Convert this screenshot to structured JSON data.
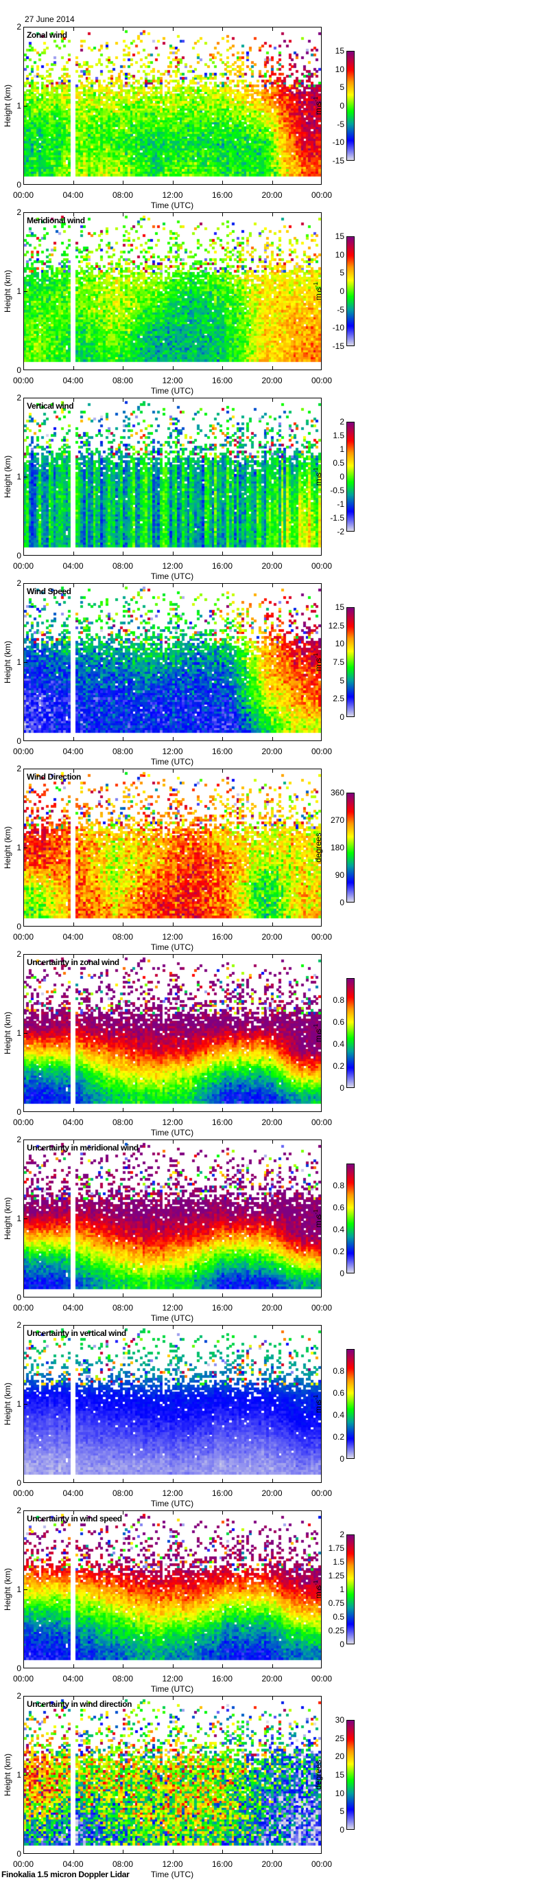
{
  "header": {
    "date": "27 June 2014"
  },
  "footer": {
    "instrument": "Finokalia 1.5 micron Doppler Lidar"
  },
  "axes": {
    "xlabel": "Time (UTC)",
    "ylabel": "Height (km)",
    "x_range_h": [
      0,
      24
    ],
    "y_range_km": [
      0,
      2
    ],
    "x_ticks": [
      {
        "v": 0,
        "label": "00:00"
      },
      {
        "v": 4,
        "label": "04:00"
      },
      {
        "v": 8,
        "label": "08:00"
      },
      {
        "v": 12,
        "label": "12:00"
      },
      {
        "v": 16,
        "label": "16:00"
      },
      {
        "v": 20,
        "label": "20:00"
      },
      {
        "v": 24,
        "label": "00:00"
      }
    ],
    "y_ticks": [
      {
        "v": 0,
        "label": "0"
      },
      {
        "v": 1,
        "label": "1"
      },
      {
        "v": 2,
        "label": "2"
      }
    ],
    "data_gap_h": [
      3.75,
      4.25
    ],
    "lowest_gate_km": 0.1,
    "highest_gate_km": 1.96,
    "time_resolution_h": 0.2,
    "gate_spacing_km": 0.03,
    "coverage_by_height": [
      {
        "h": 0.1,
        "p": 1.0
      },
      {
        "h": 0.9,
        "p": 0.98
      },
      {
        "h": 1.1,
        "p": 0.85
      },
      {
        "h": 1.3,
        "p": 0.45
      },
      {
        "h": 1.6,
        "p": 0.18
      },
      {
        "h": 1.96,
        "p": 0.08
      }
    ]
  },
  "colormap": [
    "#dcdce8",
    "#0000ff",
    "#00a0a0",
    "#00ff00",
    "#ffff00",
    "#ff9900",
    "#ff0000",
    "#800080"
  ],
  "colormap_positions": [
    0,
    0.18,
    0.33,
    0.45,
    0.6,
    0.72,
    0.83,
    1
  ],
  "chart_data": [
    {
      "type": "heatmap",
      "title": "Zonal wind",
      "unit": "m s",
      "unit_sup": "-1",
      "min": -15,
      "max": 15,
      "ticks": [
        {
          "v": -15,
          "label": "-15"
        },
        {
          "v": -10,
          "label": "-10"
        },
        {
          "v": -5,
          "label": "-5"
        },
        {
          "v": 0,
          "label": "0"
        },
        {
          "v": 5,
          "label": "5"
        },
        {
          "v": 10,
          "label": "10"
        },
        {
          "v": 15,
          "label": "15"
        }
      ],
      "noise": 3.0,
      "column_noise": 0.5,
      "times_h": [
        1.5,
        4.5,
        7.5,
        10.5,
        13.5,
        16.5,
        19.5,
        22.5
      ],
      "heights_km": [
        0.2,
        0.5,
        0.8,
        1.1,
        1.4,
        1.8
      ],
      "values": [
        [
          -2,
          1,
          2,
          -2,
          0,
          -2,
          -2,
          8
        ],
        [
          -3,
          0,
          -1,
          -3,
          -2,
          -3,
          -2,
          11
        ],
        [
          -1,
          0,
          0,
          0,
          -1,
          -1,
          1,
          12
        ],
        [
          1,
          2,
          2,
          2,
          1,
          2,
          6,
          12
        ],
        [
          2,
          3,
          3,
          3,
          3,
          3,
          8,
          14
        ],
        [
          0,
          2,
          3,
          3,
          3,
          5,
          10,
          15
        ]
      ]
    },
    {
      "type": "heatmap",
      "title": "Meridional wind",
      "unit": "m s",
      "unit_sup": "-1",
      "min": -15,
      "max": 15,
      "ticks": [
        {
          "v": -15,
          "label": "-15"
        },
        {
          "v": -10,
          "label": "-10"
        },
        {
          "v": -5,
          "label": "-5"
        },
        {
          "v": 0,
          "label": "0"
        },
        {
          "v": 5,
          "label": "5"
        },
        {
          "v": 10,
          "label": "10"
        },
        {
          "v": 15,
          "label": "15"
        }
      ],
      "noise": 2.8,
      "column_noise": 0.5,
      "times_h": [
        1.5,
        4.5,
        7.5,
        10.5,
        13.5,
        16.5,
        19.5,
        22.5
      ],
      "heights_km": [
        0.2,
        0.5,
        0.8,
        1.1,
        1.4,
        1.8
      ],
      "values": [
        [
          0,
          -3,
          -1,
          -5,
          -4,
          -3,
          4,
          7
        ],
        [
          0,
          -2,
          1,
          -4,
          -4,
          -3,
          4,
          6
        ],
        [
          -1,
          0,
          2,
          -1,
          -4,
          -2,
          4,
          5
        ],
        [
          -2,
          0,
          2,
          1,
          -2,
          0,
          4,
          3
        ],
        [
          -2,
          0,
          1,
          1,
          0,
          1,
          4,
          3
        ],
        [
          -2,
          0,
          0,
          1,
          1,
          1,
          2,
          2
        ]
      ]
    },
    {
      "type": "heatmap",
      "title": "Vertical wind",
      "unit": "m s",
      "unit_sup": "-1",
      "min": -2,
      "max": 2,
      "ticks": [
        {
          "v": -2,
          "label": "-2"
        },
        {
          "v": -1.5,
          "label": "-1.5"
        },
        {
          "v": -1,
          "label": "-1"
        },
        {
          "v": -0.5,
          "label": "-0.5"
        },
        {
          "v": 0,
          "label": "0"
        },
        {
          "v": 0.5,
          "label": "0.5"
        },
        {
          "v": 1,
          "label": "1"
        },
        {
          "v": 1.5,
          "label": "1.5"
        },
        {
          "v": 2,
          "label": "2"
        }
      ],
      "noise": 0.3,
      "column_noise": 0.45,
      "times_h": [
        1.5,
        4.5,
        7.5,
        10.5,
        13.5,
        16.5,
        19.5,
        22.5
      ],
      "heights_km": [
        0.2,
        0.5,
        0.8,
        1.1,
        1.4,
        1.8
      ],
      "values": [
        [
          -0.6,
          -0.8,
          -0.5,
          -0.5,
          -0.6,
          -0.6,
          -0.3,
          0.4
        ],
        [
          -0.6,
          -0.7,
          -0.5,
          -0.5,
          -0.5,
          -0.5,
          -0.3,
          0.3
        ],
        [
          -0.6,
          -0.6,
          -0.5,
          -0.5,
          -0.5,
          -0.5,
          -0.4,
          0.1
        ],
        [
          -0.7,
          -0.7,
          -0.6,
          -0.5,
          -0.5,
          -0.5,
          -0.5,
          -0.2
        ],
        [
          -0.5,
          -0.6,
          -0.5,
          -0.5,
          -0.5,
          -0.5,
          -0.5,
          -0.4
        ],
        [
          -0.4,
          -0.5,
          -0.5,
          -0.5,
          -0.5,
          -0.5,
          -0.5,
          -0.5
        ]
      ]
    },
    {
      "type": "heatmap",
      "title": "Wind Speed",
      "unit": "m s",
      "unit_sup": "-1",
      "min": 0,
      "max": 15,
      "ticks": [
        {
          "v": 0,
          "label": "0"
        },
        {
          "v": 2.5,
          "label": "2.5"
        },
        {
          "v": 5,
          "label": "5"
        },
        {
          "v": 7.5,
          "label": "7.5"
        },
        {
          "v": 10,
          "label": "10"
        },
        {
          "v": 12.5,
          "label": "12.5"
        },
        {
          "v": 15,
          "label": "15"
        }
      ],
      "noise": 1.6,
      "column_noise": 0.4,
      "times_h": [
        1.5,
        4.5,
        7.5,
        10.5,
        13.5,
        16.5,
        19.5,
        22.5
      ],
      "heights_km": [
        0.2,
        0.5,
        0.8,
        1.1,
        1.4,
        1.8
      ],
      "values": [
        [
          2,
          3,
          3,
          3,
          3,
          2,
          6,
          9
        ],
        [
          2,
          3,
          3,
          3,
          3,
          3,
          8,
          11
        ],
        [
          3,
          4,
          4,
          4,
          4,
          4,
          9,
          12
        ],
        [
          4,
          5,
          5,
          6,
          5,
          5,
          10,
          13
        ],
        [
          5,
          6,
          6,
          6,
          6,
          7,
          11,
          14
        ],
        [
          5,
          6,
          7,
          7,
          8,
          8,
          12,
          14
        ]
      ]
    },
    {
      "type": "heatmap",
      "title": "Wind Direction",
      "unit": "degrees",
      "unit_sup": "",
      "min": 0,
      "max": 360,
      "ticks": [
        {
          "v": 0,
          "label": "0"
        },
        {
          "v": 90,
          "label": "90"
        },
        {
          "v": 180,
          "label": "180"
        },
        {
          "v": 270,
          "label": "270"
        },
        {
          "v": 360,
          "label": "360"
        }
      ],
      "noise": 45,
      "column_noise": 10,
      "times_h": [
        1.5,
        4.5,
        7.5,
        10.5,
        13.5,
        16.5,
        19.5,
        22.5
      ],
      "heights_km": [
        0.2,
        0.5,
        0.8,
        1.1,
        1.4,
        1.8
      ],
      "values": [
        [
          180,
          280,
          240,
          300,
          300,
          270,
          150,
          230
        ],
        [
          200,
          280,
          200,
          280,
          300,
          260,
          150,
          230
        ],
        [
          280,
          260,
          200,
          250,
          290,
          270,
          200,
          220
        ],
        [
          300,
          260,
          220,
          250,
          280,
          230,
          220,
          220
        ],
        [
          290,
          260,
          240,
          260,
          270,
          240,
          230,
          220
        ],
        [
          280,
          270,
          260,
          270,
          260,
          250,
          240,
          230
        ]
      ]
    },
    {
      "type": "heatmap",
      "title": "Uncertainty in zonal wind",
      "unit": "m s",
      "unit_sup": "-1",
      "min": 0,
      "max": 1,
      "ticks": [
        {
          "v": 0,
          "label": "0"
        },
        {
          "v": 0.2,
          "label": "0.2"
        },
        {
          "v": 0.4,
          "label": "0.4"
        },
        {
          "v": 0.6,
          "label": "0.6"
        },
        {
          "v": 0.8,
          "label": "0.8"
        }
      ],
      "noise": 0.07,
      "column_noise": 0.03,
      "times_h": [
        1.5,
        4.5,
        7.5,
        10.5,
        13.5,
        16.5,
        19.5,
        22.5
      ],
      "heights_km": [
        0.2,
        0.5,
        0.8,
        1.1,
        1.4,
        1.8
      ],
      "values": [
        [
          0.2,
          0.25,
          0.4,
          0.45,
          0.4,
          0.2,
          0.2,
          0.35
        ],
        [
          0.35,
          0.4,
          0.6,
          0.65,
          0.55,
          0.4,
          0.4,
          0.7
        ],
        [
          0.7,
          0.7,
          0.8,
          0.9,
          0.85,
          0.7,
          0.7,
          1.0
        ],
        [
          1.0,
          0.95,
          1.0,
          1.0,
          1.0,
          1.0,
          1.0,
          1.0
        ],
        [
          1,
          1,
          1,
          1,
          1,
          1,
          1,
          1
        ],
        [
          1,
          1,
          1,
          1,
          1,
          1,
          1,
          1
        ]
      ]
    },
    {
      "type": "heatmap",
      "title": "Uncertainty in meridional wind",
      "unit": "m s",
      "unit_sup": "-1",
      "min": 0,
      "max": 1,
      "ticks": [
        {
          "v": 0,
          "label": "0"
        },
        {
          "v": 0.2,
          "label": "0.2"
        },
        {
          "v": 0.4,
          "label": "0.4"
        },
        {
          "v": 0.6,
          "label": "0.6"
        },
        {
          "v": 0.8,
          "label": "0.8"
        }
      ],
      "noise": 0.07,
      "column_noise": 0.03,
      "times_h": [
        1.5,
        4.5,
        7.5,
        10.5,
        13.5,
        16.5,
        19.5,
        22.5
      ],
      "heights_km": [
        0.2,
        0.5,
        0.8,
        1.1,
        1.4,
        1.8
      ],
      "values": [
        [
          0.2,
          0.25,
          0.4,
          0.45,
          0.4,
          0.2,
          0.2,
          0.35
        ],
        [
          0.38,
          0.45,
          0.6,
          0.7,
          0.6,
          0.45,
          0.45,
          0.7
        ],
        [
          0.72,
          0.72,
          0.85,
          0.9,
          0.85,
          0.75,
          0.75,
          1.0
        ],
        [
          1.0,
          0.95,
          1.0,
          1.0,
          1.0,
          1.0,
          1.0,
          1.0
        ],
        [
          1,
          1,
          1,
          1,
          1,
          1,
          1,
          1
        ],
        [
          1,
          1,
          1,
          1,
          1,
          1,
          1,
          1
        ]
      ]
    },
    {
      "type": "heatmap",
      "title": "Uncertainty in vertical wind",
      "unit": "m s",
      "unit_sup": "-1",
      "min": 0,
      "max": 1,
      "ticks": [
        {
          "v": 0,
          "label": "0"
        },
        {
          "v": 0.2,
          "label": "0.2"
        },
        {
          "v": 0.4,
          "label": "0.4"
        },
        {
          "v": 0.6,
          "label": "0.6"
        },
        {
          "v": 0.8,
          "label": "0.8"
        }
      ],
      "noise": 0.025,
      "column_noise": 0.01,
      "times_h": [
        1.5,
        4.5,
        7.5,
        10.5,
        13.5,
        16.5,
        19.5,
        22.5
      ],
      "heights_km": [
        0.2,
        0.5,
        0.8,
        1.1,
        1.4,
        1.8
      ],
      "values": [
        [
          0.04,
          0.05,
          0.05,
          0.06,
          0.06,
          0.05,
          0.05,
          0.07
        ],
        [
          0.08,
          0.09,
          0.1,
          0.11,
          0.11,
          0.09,
          0.09,
          0.13
        ],
        [
          0.12,
          0.13,
          0.14,
          0.16,
          0.16,
          0.14,
          0.14,
          0.18
        ],
        [
          0.17,
          0.18,
          0.19,
          0.2,
          0.2,
          0.19,
          0.19,
          0.22
        ],
        [
          0.3,
          0.3,
          0.3,
          0.32,
          0.32,
          0.3,
          0.3,
          0.32
        ],
        [
          0.4,
          0.4,
          0.4,
          0.4,
          0.4,
          0.4,
          0.4,
          0.4
        ]
      ]
    },
    {
      "type": "heatmap",
      "title": "Uncertainty in wind speed",
      "unit": "m s",
      "unit_sup": "-1",
      "min": 0,
      "max": 2,
      "ticks": [
        {
          "v": 0,
          "label": "0"
        },
        {
          "v": 0.25,
          "label": "0.25"
        },
        {
          "v": 0.5,
          "label": "0.5"
        },
        {
          "v": 0.75,
          "label": "0.75"
        },
        {
          "v": 1,
          "label": "1"
        },
        {
          "v": 1.25,
          "label": "1.25"
        },
        {
          "v": 1.5,
          "label": "1.5"
        },
        {
          "v": 1.75,
          "label": "1.75"
        },
        {
          "v": 2,
          "label": "2"
        }
      ],
      "noise": 0.15,
      "column_noise": 0.05,
      "times_h": [
        1.5,
        4.5,
        7.5,
        10.5,
        13.5,
        16.5,
        19.5,
        22.5
      ],
      "heights_km": [
        0.2,
        0.5,
        0.8,
        1.1,
        1.4,
        1.8
      ],
      "values": [
        [
          0.35,
          0.45,
          0.55,
          0.7,
          0.6,
          0.4,
          0.4,
          0.6
        ],
        [
          0.55,
          0.65,
          0.85,
          1.0,
          0.95,
          0.65,
          0.65,
          1.0
        ],
        [
          0.95,
          1.0,
          1.2,
          1.4,
          1.4,
          1.1,
          1.1,
          1.5
        ],
        [
          1.4,
          1.45,
          1.6,
          1.75,
          1.75,
          1.6,
          1.6,
          1.9
        ],
        [
          1.85,
          1.9,
          1.95,
          2.0,
          2.0,
          1.95,
          1.95,
          2.0
        ],
        [
          2,
          2,
          2,
          2,
          2,
          2,
          2,
          2
        ]
      ]
    },
    {
      "type": "heatmap",
      "title": "Uncertainty in wind direction",
      "unit": "degrees",
      "unit_sup": "",
      "min": 0,
      "max": 30,
      "ticks": [
        {
          "v": 0,
          "label": "0"
        },
        {
          "v": 5,
          "label": "5"
        },
        {
          "v": 10,
          "label": "10"
        },
        {
          "v": 15,
          "label": "15"
        },
        {
          "v": 20,
          "label": "20"
        },
        {
          "v": 25,
          "label": "25"
        },
        {
          "v": 30,
          "label": "30"
        }
      ],
      "noise": 9,
      "column_noise": 2,
      "times_h": [
        1.5,
        4.5,
        7.5,
        10.5,
        13.5,
        16.5,
        19.5,
        22.5
      ],
      "heights_km": [
        0.2,
        0.5,
        0.8,
        1.1,
        1.4,
        1.8
      ],
      "values": [
        [
          8,
          5,
          10,
          14,
          14,
          12,
          7,
          3
        ],
        [
          15,
          10,
          14,
          16,
          17,
          16,
          9,
          4
        ],
        [
          20,
          16,
          15,
          16,
          17,
          16,
          10,
          6
        ],
        [
          20,
          18,
          16,
          17,
          17,
          16,
          12,
          8
        ],
        [
          18,
          16,
          15,
          15,
          15,
          14,
          12,
          10
        ],
        [
          15,
          14,
          14,
          14,
          14,
          13,
          12,
          10
        ]
      ]
    }
  ]
}
